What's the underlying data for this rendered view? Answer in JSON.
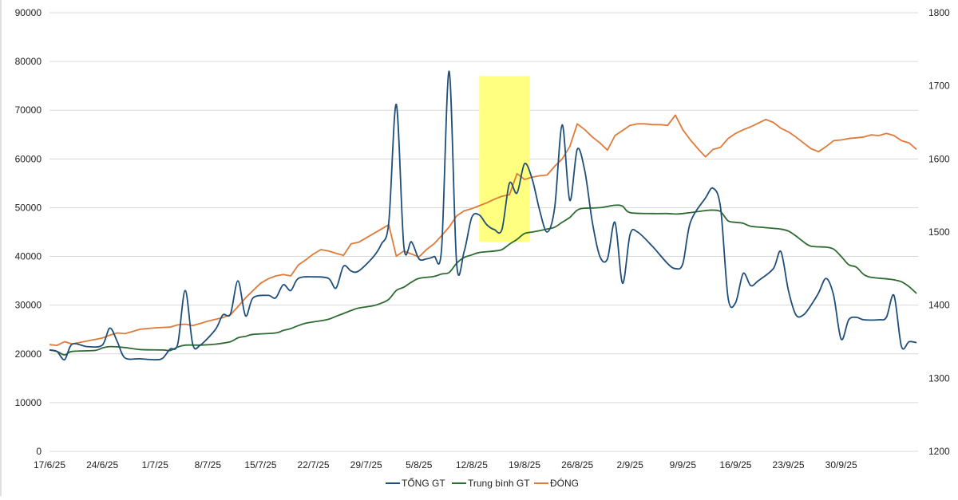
{
  "chart_data": {
    "type": "line",
    "title": "",
    "x_ticks": [
      "17/6/25",
      "24/6/25",
      "1/7/25",
      "8/7/25",
      "15/7/25",
      "22/7/25",
      "29/7/25",
      "5/8/25",
      "12/8/25",
      "19/8/25",
      "26/8/25",
      "2/9/25",
      "9/9/25",
      "16/9/25",
      "23/9/25",
      "30/9/25"
    ],
    "x_range_days": [
      0,
      112
    ],
    "y_left": {
      "ylim": [
        0,
        90000
      ],
      "ticks": [
        "0",
        "10000",
        "20000",
        "30000",
        "40000",
        "50000",
        "60000",
        "70000",
        "80000",
        "90000"
      ]
    },
    "y_right": {
      "ylim": [
        1200,
        1800
      ],
      "ticks": [
        "1200",
        "1300",
        "1400",
        "1500",
        "1600",
        "1700",
        "1800"
      ]
    },
    "grid": true,
    "legend_position": "bottom",
    "highlight": {
      "x_from_day": 57,
      "x_to_day": 63.7,
      "y_from": 43000,
      "y_to": 77000,
      "color": "#ffff80"
    },
    "series": [
      {
        "name": "TỔNG GT",
        "axis": "left",
        "color": "#1f4e79",
        "smooth": true,
        "points": [
          [
            0,
            20800
          ],
          [
            1,
            20500
          ],
          [
            2,
            18800
          ],
          [
            3,
            22000
          ],
          [
            5,
            21500
          ],
          [
            7,
            21800
          ],
          [
            8,
            25300
          ],
          [
            9,
            22500
          ],
          [
            10,
            19200
          ],
          [
            12,
            19000
          ],
          [
            14,
            18800
          ],
          [
            15,
            19100
          ],
          [
            16,
            21000
          ],
          [
            17,
            22000
          ],
          [
            18,
            33000
          ],
          [
            19,
            22000
          ],
          [
            20,
            21800
          ],
          [
            22,
            25000
          ],
          [
            23,
            28000
          ],
          [
            24,
            28200
          ],
          [
            25,
            35000
          ],
          [
            26,
            27800
          ],
          [
            27,
            31500
          ],
          [
            29,
            32000
          ],
          [
            30,
            31500
          ],
          [
            31,
            34200
          ],
          [
            32,
            33000
          ],
          [
            33,
            35500
          ],
          [
            35,
            35800
          ],
          [
            37,
            35500
          ],
          [
            38,
            33500
          ],
          [
            39,
            38000
          ],
          [
            40,
            37000
          ],
          [
            41,
            37000
          ],
          [
            43,
            40000
          ],
          [
            44,
            42500
          ],
          [
            45,
            47000
          ],
          [
            46,
            71200
          ],
          [
            47,
            42000
          ],
          [
            48,
            43000
          ],
          [
            49,
            39500
          ],
          [
            50,
            39500
          ],
          [
            51,
            40000
          ],
          [
            52,
            41500
          ],
          [
            53,
            78000
          ],
          [
            54,
            38500
          ],
          [
            55,
            41000
          ],
          [
            56,
            48000
          ],
          [
            57,
            48500
          ],
          [
            58,
            46500
          ],
          [
            59,
            45500
          ],
          [
            60,
            45500
          ],
          [
            61,
            55000
          ],
          [
            62,
            53000
          ],
          [
            63,
            59000
          ],
          [
            64,
            56000
          ],
          [
            65,
            49500
          ],
          [
            66,
            45000
          ],
          [
            67,
            50000
          ],
          [
            68,
            67000
          ],
          [
            69,
            51500
          ],
          [
            70,
            62000
          ],
          [
            71,
            57500
          ],
          [
            72,
            47000
          ],
          [
            73,
            40000
          ],
          [
            74,
            39500
          ],
          [
            75,
            47000
          ],
          [
            76,
            34500
          ],
          [
            77,
            44500
          ],
          [
            78,
            45000
          ],
          [
            80,
            42000
          ],
          [
            82,
            38500
          ],
          [
            83,
            37500
          ],
          [
            84,
            38500
          ],
          [
            85,
            47000
          ],
          [
            87,
            52000
          ],
          [
            88,
            54000
          ],
          [
            89,
            50000
          ],
          [
            90,
            31500
          ],
          [
            91,
            30500
          ],
          [
            92,
            36500
          ],
          [
            93,
            34000
          ],
          [
            94,
            35000
          ],
          [
            96,
            37500
          ],
          [
            97,
            41000
          ],
          [
            98,
            33000
          ],
          [
            99,
            28000
          ],
          [
            100,
            28000
          ],
          [
            101,
            30000
          ],
          [
            102,
            32500
          ],
          [
            103,
            35500
          ],
          [
            104,
            32000
          ],
          [
            105,
            23000
          ],
          [
            106,
            27000
          ],
          [
            107,
            27500
          ],
          [
            108,
            27000
          ],
          [
            110,
            27000
          ],
          [
            111,
            27500
          ],
          [
            112,
            32000
          ],
          [
            113,
            21500
          ],
          [
            114,
            22500
          ],
          [
            115,
            22300
          ]
        ]
      },
      {
        "name": "Trung bình GT",
        "axis": "left",
        "color": "#2e6b30",
        "smooth": true,
        "points": [
          [
            0,
            20800
          ],
          [
            1,
            20500
          ],
          [
            2,
            19800
          ],
          [
            3,
            20500
          ],
          [
            6,
            20700
          ],
          [
            7,
            21200
          ],
          [
            8,
            21500
          ],
          [
            10,
            21300
          ],
          [
            12,
            20900
          ],
          [
            15,
            20800
          ],
          [
            16,
            20700
          ],
          [
            17,
            21400
          ],
          [
            18,
            21800
          ],
          [
            20,
            21800
          ],
          [
            22,
            22000
          ],
          [
            24,
            22500
          ],
          [
            25,
            23300
          ],
          [
            26,
            23600
          ],
          [
            27,
            24000
          ],
          [
            30,
            24300
          ],
          [
            31,
            24800
          ],
          [
            32,
            25200
          ],
          [
            33,
            25800
          ],
          [
            34,
            26300
          ],
          [
            36,
            26800
          ],
          [
            37,
            27100
          ],
          [
            38,
            27700
          ],
          [
            39,
            28300
          ],
          [
            40,
            28900
          ],
          [
            41,
            29400
          ],
          [
            43,
            29900
          ],
          [
            44,
            30400
          ],
          [
            45,
            31200
          ],
          [
            46,
            33000
          ],
          [
            47,
            33700
          ],
          [
            48,
            34700
          ],
          [
            49,
            35500
          ],
          [
            51,
            35900
          ],
          [
            52,
            36400
          ],
          [
            53,
            36700
          ],
          [
            54,
            38600
          ],
          [
            55,
            39800
          ],
          [
            56,
            40300
          ],
          [
            57,
            40800
          ],
          [
            59,
            41100
          ],
          [
            60,
            41400
          ],
          [
            61,
            42500
          ],
          [
            62,
            43500
          ],
          [
            63,
            44700
          ],
          [
            64,
            45000
          ],
          [
            65,
            45300
          ],
          [
            66,
            45600
          ],
          [
            67,
            46000
          ],
          [
            68,
            47000
          ],
          [
            69,
            48000
          ],
          [
            70,
            49500
          ],
          [
            71,
            49900
          ],
          [
            73,
            50000
          ],
          [
            75,
            50500
          ],
          [
            76,
            50300
          ],
          [
            77,
            49000
          ],
          [
            80,
            48800
          ],
          [
            82,
            48800
          ],
          [
            83,
            48700
          ],
          [
            84,
            48800
          ],
          [
            85,
            49000
          ],
          [
            87,
            49400
          ],
          [
            88,
            49500
          ],
          [
            89,
            49200
          ],
          [
            90,
            47300
          ],
          [
            91,
            47000
          ],
          [
            92,
            46800
          ],
          [
            93,
            46200
          ],
          [
            95,
            45900
          ],
          [
            97,
            45600
          ],
          [
            98,
            45200
          ],
          [
            99,
            44200
          ],
          [
            100,
            43000
          ],
          [
            101,
            42100
          ],
          [
            103,
            41900
          ],
          [
            104,
            41500
          ],
          [
            105,
            40000
          ],
          [
            106,
            38300
          ],
          [
            107,
            37800
          ],
          [
            108,
            36300
          ],
          [
            109,
            35700
          ],
          [
            111,
            35400
          ],
          [
            112,
            35200
          ],
          [
            113,
            34800
          ],
          [
            114,
            33800
          ],
          [
            115,
            32400
          ]
        ]
      },
      {
        "name": "ĐÓNG",
        "axis": "right",
        "color": "#e07a3a",
        "smooth": false,
        "points": [
          [
            0,
            1346
          ],
          [
            1,
            1345
          ],
          [
            2,
            1350
          ],
          [
            3,
            1347
          ],
          [
            5,
            1351
          ],
          [
            7,
            1355
          ],
          [
            8,
            1359
          ],
          [
            9,
            1362
          ],
          [
            10,
            1361
          ],
          [
            11,
            1364
          ],
          [
            12,
            1367
          ],
          [
            13,
            1368
          ],
          [
            14,
            1369
          ],
          [
            16,
            1370
          ],
          [
            17,
            1373
          ],
          [
            18,
            1374
          ],
          [
            19,
            1372
          ],
          [
            20,
            1375
          ],
          [
            21,
            1378
          ],
          [
            23,
            1383
          ],
          [
            24,
            1387
          ],
          [
            25,
            1398
          ],
          [
            26,
            1410
          ],
          [
            27,
            1420
          ],
          [
            28,
            1430
          ],
          [
            29,
            1436
          ],
          [
            30,
            1440
          ],
          [
            31,
            1442
          ],
          [
            32,
            1440
          ],
          [
            33,
            1455
          ],
          [
            34,
            1462
          ],
          [
            35,
            1470
          ],
          [
            36,
            1476
          ],
          [
            37,
            1474
          ],
          [
            38,
            1471
          ],
          [
            39,
            1468
          ],
          [
            40,
            1484
          ],
          [
            41,
            1486
          ],
          [
            42,
            1492
          ],
          [
            43,
            1498
          ],
          [
            44,
            1504
          ],
          [
            45,
            1510
          ],
          [
            46,
            1467
          ],
          [
            47,
            1474
          ],
          [
            48,
            1470
          ],
          [
            49,
            1466
          ],
          [
            50,
            1476
          ],
          [
            51,
            1484
          ],
          [
            52,
            1495
          ],
          [
            53,
            1507
          ],
          [
            54,
            1522
          ],
          [
            55,
            1529
          ],
          [
            56,
            1532
          ],
          [
            57,
            1536
          ],
          [
            58,
            1540
          ],
          [
            59,
            1545
          ],
          [
            60,
            1549
          ],
          [
            61,
            1551
          ],
          [
            62,
            1580
          ],
          [
            63,
            1572
          ],
          [
            64,
            1575
          ],
          [
            65,
            1577
          ],
          [
            66,
            1578
          ],
          [
            67,
            1590
          ],
          [
            68,
            1600
          ],
          [
            69,
            1617
          ],
          [
            70,
            1648
          ],
          [
            71,
            1640
          ],
          [
            72,
            1630
          ],
          [
            73,
            1622
          ],
          [
            74,
            1612
          ],
          [
            75,
            1632
          ],
          [
            76,
            1639
          ],
          [
            77,
            1646
          ],
          [
            78,
            1648
          ],
          [
            79,
            1648
          ],
          [
            80,
            1647
          ],
          [
            81,
            1647
          ],
          [
            82,
            1646
          ],
          [
            83,
            1660
          ],
          [
            84,
            1640
          ],
          [
            85,
            1626
          ],
          [
            86,
            1614
          ],
          [
            87,
            1603
          ],
          [
            88,
            1613
          ],
          [
            89,
            1616
          ],
          [
            90,
            1628
          ],
          [
            91,
            1635
          ],
          [
            92,
            1640
          ],
          [
            93,
            1644
          ],
          [
            94,
            1649
          ],
          [
            95,
            1654
          ],
          [
            96,
            1650
          ],
          [
            97,
            1642
          ],
          [
            98,
            1637
          ],
          [
            99,
            1630
          ],
          [
            100,
            1622
          ],
          [
            101,
            1614
          ],
          [
            102,
            1610
          ],
          [
            103,
            1617
          ],
          [
            104,
            1625
          ],
          [
            105,
            1626
          ],
          [
            106,
            1628
          ],
          [
            107,
            1629
          ],
          [
            108,
            1630
          ],
          [
            109,
            1633
          ],
          [
            110,
            1632
          ],
          [
            111,
            1635
          ],
          [
            112,
            1632
          ],
          [
            113,
            1625
          ],
          [
            114,
            1622
          ],
          [
            115,
            1613
          ]
        ]
      }
    ]
  }
}
